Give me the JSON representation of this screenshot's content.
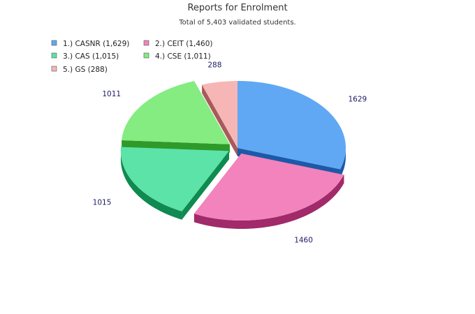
{
  "chart_data": {
    "type": "pie",
    "title": "Reports for Enrolment",
    "subtitle": "Total of 5,403 validated students.",
    "legend_placement": "top-left",
    "categories": [
      "CASNR",
      "CEIT",
      "CAS",
      "CSE",
      "GS"
    ],
    "values": [
      1629,
      1460,
      1015,
      1011,
      288
    ],
    "legend": [
      "1.) CASNR (1,629)",
      "2.) CEIT (1,460)",
      "3.) CAS (1,015)",
      "4.) CSE (1,011)",
      "5.) GS (288)"
    ],
    "data_labels": [
      "1629",
      "1460",
      "1015",
      "1011",
      "288"
    ],
    "colors": [
      "#60a8f3",
      "#f383bd",
      "#5ce3a7",
      "#84ec80",
      "#f7b6b6"
    ],
    "side_colors": [
      "#1b5aa8",
      "#a02a6a",
      "#0f8a50",
      "#2e9a2a",
      "#a85a5a"
    ],
    "exploded": [
      false,
      true,
      true,
      true,
      false
    ],
    "rendering": "3d"
  }
}
